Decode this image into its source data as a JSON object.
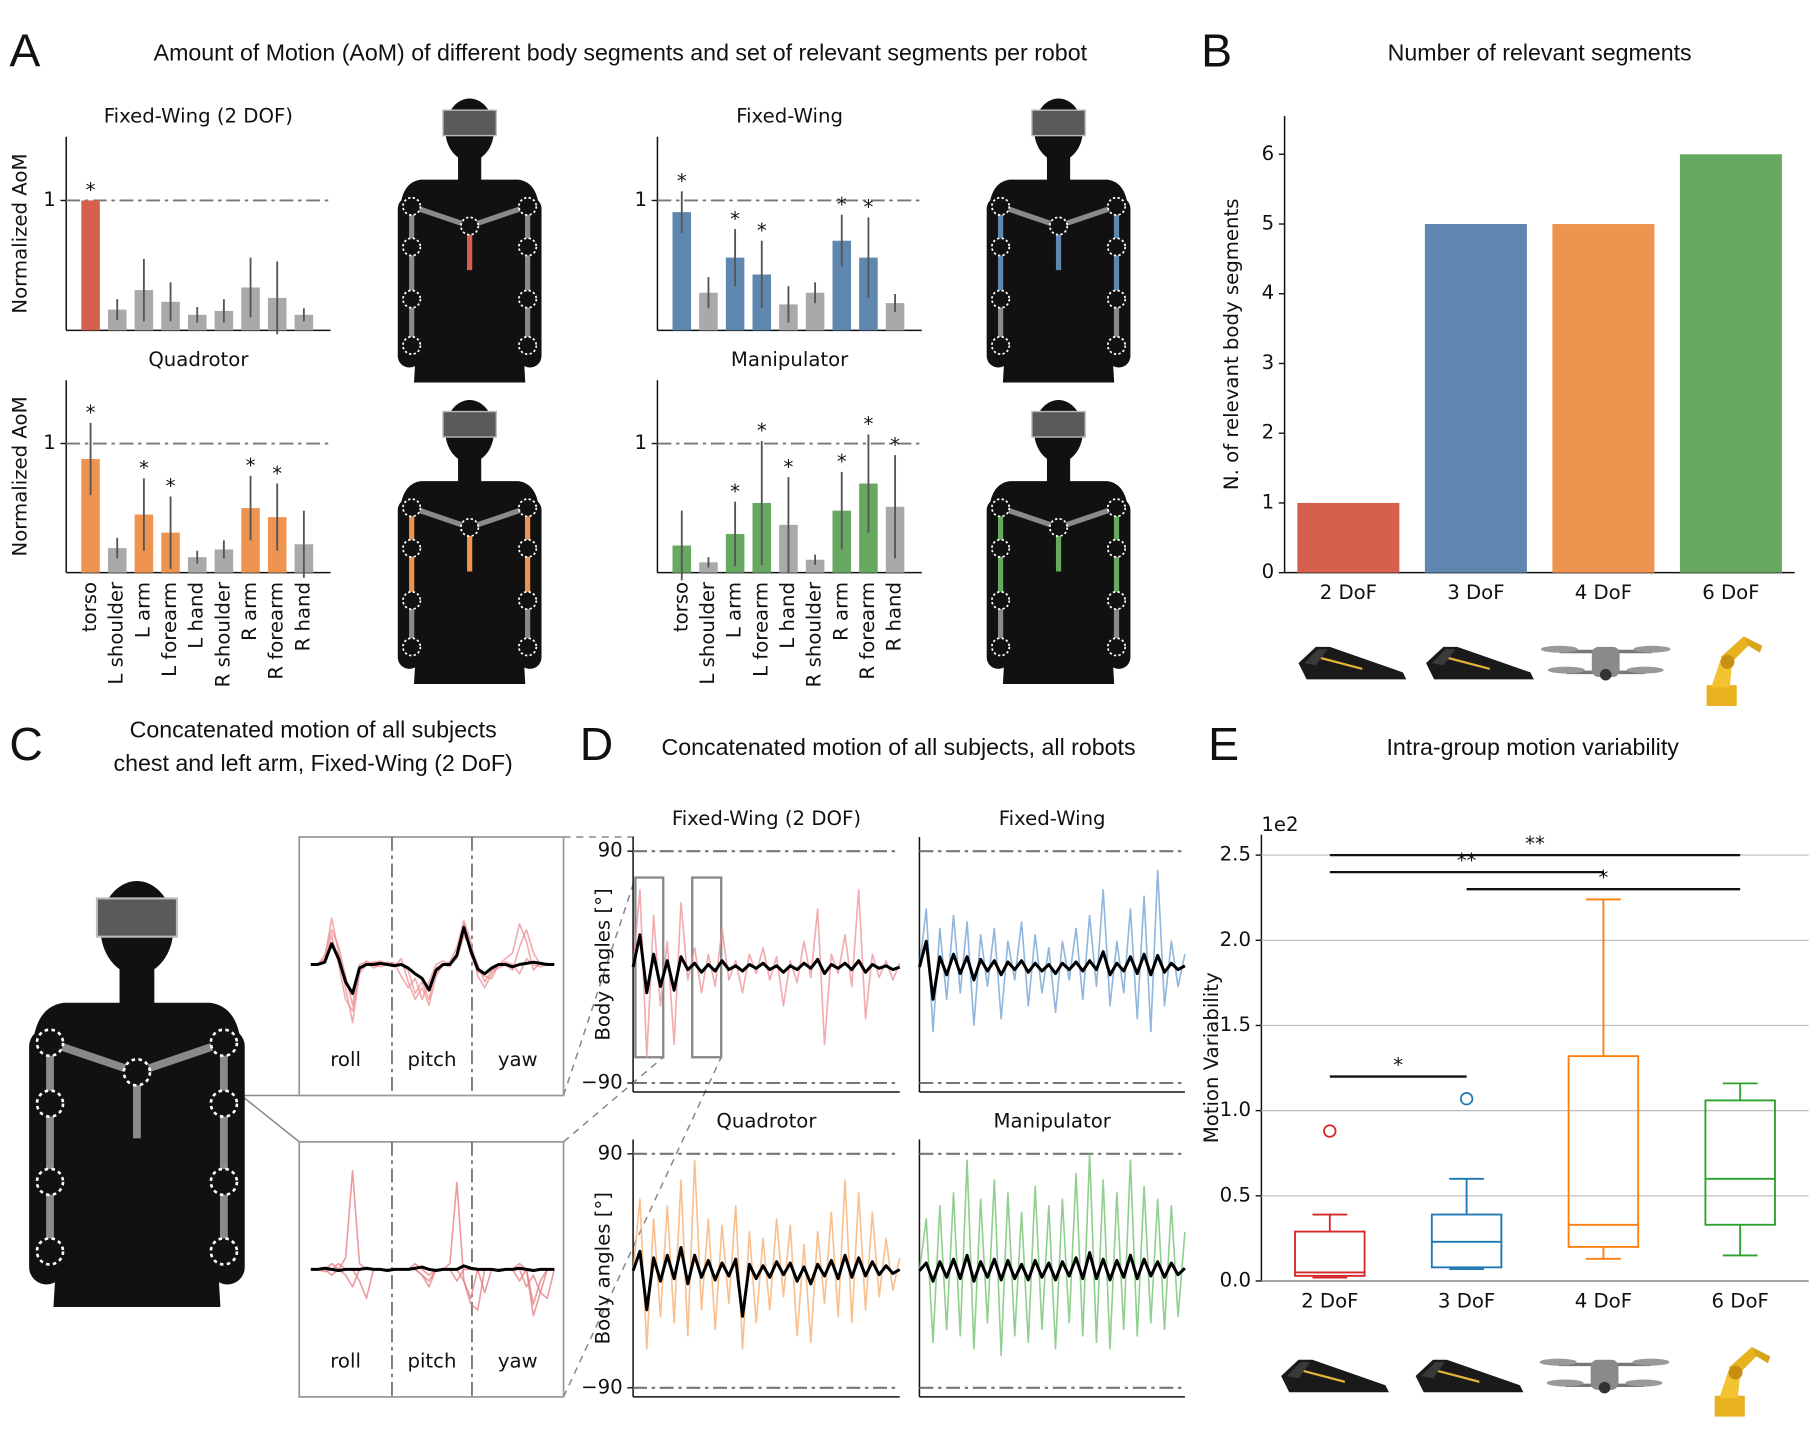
{
  "panels": [
    {
      "label": "A",
      "title": "Amount of Motion (AoM) of different body segments and set of relevant segments per robot"
    },
    {
      "label": "B",
      "title": "Number of relevant segments"
    },
    {
      "label": "C",
      "title": [
        "Concatenated motion of all subjects",
        "chest and left arm, Fixed-Wing (2 DoF)"
      ]
    },
    {
      "label": "D",
      "title": "Concatenated motion of all subjects, all robots"
    },
    {
      "label": "E",
      "title": "Intra-group motion variability"
    }
  ],
  "chart_data": [
    {
      "type": "bar",
      "title": "Fixed-Wing (2 DOF)",
      "ylabel": "Normalized AoM",
      "values": [
        1.0,
        0.16,
        0.31,
        0.22,
        0.12,
        0.15,
        0.33,
        0.25,
        0.12
      ],
      "errors": [
        0.0,
        0.08,
        0.24,
        0.15,
        0.06,
        0.09,
        0.23,
        0.28,
        0.05
      ],
      "markers": [
        "*",
        null,
        null,
        null,
        null,
        null,
        null,
        null,
        null
      ],
      "colors": [
        "#d6604d",
        "#a9a9a9",
        "#a9a9a9",
        "#a9a9a9",
        "#a9a9a9",
        "#a9a9a9",
        "#a9a9a9",
        "#a9a9a9",
        "#a9a9a9"
      ],
      "ylim": [
        0,
        1.49
      ],
      "yticks": [
        1
      ],
      "grid": true
    },
    {
      "type": "bar",
      "title": "Fixed-Wing",
      "values": [
        0.91,
        0.29,
        0.56,
        0.43,
        0.2,
        0.29,
        0.69,
        0.56,
        0.21
      ],
      "errors": [
        0.16,
        0.12,
        0.22,
        0.26,
        0.14,
        0.08,
        0.2,
        0.31,
        0.07
      ],
      "markers": [
        "*",
        null,
        "*",
        "*",
        null,
        null,
        "*",
        "*",
        null
      ],
      "colors": [
        "#5f87b0",
        "#a9a9a9",
        "#5f87b0",
        "#5f87b0",
        "#a9a9a9",
        "#a9a9a9",
        "#5f87b0",
        "#5f87b0",
        "#a9a9a9"
      ],
      "ylim": [
        0,
        1.49
      ],
      "yticks": [
        1
      ],
      "grid": true
    },
    {
      "type": "bar",
      "title": "Quadrotor",
      "ylabel": "Normalized AoM",
      "categories": [
        "torso",
        "L shoulder",
        "L arm",
        "L forearm",
        "L hand",
        "R shoulder",
        "R arm",
        "R forearm",
        "R hand"
      ],
      "values": [
        0.88,
        0.19,
        0.45,
        0.31,
        0.12,
        0.18,
        0.5,
        0.43,
        0.22
      ],
      "errors": [
        0.28,
        0.08,
        0.28,
        0.28,
        0.05,
        0.07,
        0.25,
        0.26,
        0.26
      ],
      "markers": [
        "*",
        null,
        "*",
        "*",
        null,
        null,
        "*",
        "*",
        null
      ],
      "colors": [
        "#ef9450",
        "#a9a9a9",
        "#ef9450",
        "#ef9450",
        "#a9a9a9",
        "#a9a9a9",
        "#ef9450",
        "#ef9450",
        "#a9a9a9"
      ],
      "ylim": [
        0,
        1.49
      ],
      "yticks": [
        1
      ],
      "grid": true
    },
    {
      "type": "bar",
      "title": "Manipulator",
      "categories": [
        "torso",
        "L shoulder",
        "L arm",
        "L forearm",
        "L hand",
        "R shoulder",
        "R arm",
        "R forearm",
        "R hand"
      ],
      "values": [
        0.21,
        0.08,
        0.3,
        0.54,
        0.37,
        0.1,
        0.48,
        0.69,
        0.51
      ],
      "errors": [
        0.27,
        0.04,
        0.25,
        0.48,
        0.37,
        0.04,
        0.3,
        0.38,
        0.4
      ],
      "markers": [
        null,
        null,
        "*",
        "*",
        "*",
        null,
        "*",
        "*",
        "*"
      ],
      "colors": [
        "#68a962",
        "#a9a9a9",
        "#68a962",
        "#68a962",
        "#a9a9a9",
        "#a9a9a9",
        "#68a962",
        "#68a962",
        "#a9a9a9"
      ],
      "ylim": [
        0,
        1.49
      ],
      "yticks": [
        1
      ],
      "grid": true
    },
    {
      "type": "bar",
      "ylabel": "N. of relevant body segments",
      "categories": [
        "2 DoF",
        "3 DoF",
        "4 DoF",
        "6 DoF"
      ],
      "values": [
        1,
        5,
        5,
        6
      ],
      "colors": [
        "#d6604d",
        "#5f87b0",
        "#ef9450",
        "#68a962"
      ],
      "ylim": [
        0,
        6.55
      ],
      "yticks": [
        0,
        1,
        2,
        3,
        4,
        5,
        6
      ]
    },
    {
      "type": "line",
      "sections": [
        "roll",
        "pitch",
        "yaw"
      ],
      "series": [
        {
          "color": "#ec8f93",
          "values": [
            0,
            0,
            5,
            40,
            10,
            -20,
            -50,
            -8,
            0,
            2,
            3,
            0,
            -2,
            5,
            -15,
            -30,
            -20,
            -35,
            -10,
            0,
            2,
            15,
            38,
            20,
            -10,
            -20,
            -8,
            0,
            5,
            10,
            35,
            20,
            -5,
            2,
            0,
            0
          ]
        },
        {
          "color": "#ec8f93",
          "values": [
            0,
            1,
            3,
            25,
            0,
            -30,
            -40,
            -5,
            3,
            0,
            -2,
            0,
            1,
            -10,
            -20,
            -12,
            -30,
            -15,
            0,
            3,
            0,
            5,
            25,
            15,
            0,
            -15,
            -5,
            -3,
            0,
            -5,
            15,
            30,
            10,
            0,
            1,
            0
          ]
        },
        {
          "color": "#ec8f93",
          "values": [
            0,
            0,
            8,
            30,
            15,
            -10,
            -35,
            0,
            2,
            -3,
            0,
            2,
            0,
            0,
            -5,
            -25,
            -15,
            -30,
            -3,
            0,
            -2,
            10,
            35,
            8,
            -6,
            -10,
            -12,
            0,
            2,
            0,
            -8,
            5,
            0,
            -2,
            0,
            0
          ]
        },
        {
          "color": "#000000",
          "values": [
            0,
            0,
            2,
            18,
            5,
            -15,
            -25,
            -3,
            0,
            0,
            1,
            0,
            -1,
            0,
            -3,
            -8,
            -12,
            -22,
            -5,
            0,
            0,
            8,
            32,
            12,
            -4,
            -8,
            -3,
            0,
            0,
            -2,
            0,
            1,
            2,
            1,
            0,
            0
          ]
        }
      ]
    },
    {
      "type": "line",
      "sections": [
        "roll",
        "pitch",
        "yaw"
      ],
      "series": [
        {
          "color": "#e57b80",
          "values": [
            0,
            0,
            0,
            5,
            0,
            -5,
            -15,
            0,
            0,
            0,
            0,
            0,
            0,
            0,
            0,
            5,
            0,
            -5,
            0,
            0,
            0,
            -10,
            0,
            0,
            0,
            -20,
            0,
            0,
            0,
            0,
            5,
            0,
            -30,
            -10,
            0,
            0
          ]
        },
        {
          "color": "#e57b80",
          "values": [
            0,
            0,
            0,
            -5,
            0,
            10,
            85,
            5,
            0,
            0,
            0,
            0,
            0,
            0,
            0,
            0,
            -5,
            -15,
            0,
            0,
            5,
            75,
            -10,
            -25,
            0,
            0,
            0,
            0,
            0,
            0,
            -10,
            0,
            -40,
            -20,
            0,
            0
          ]
        },
        {
          "color": "#e57b80",
          "values": [
            0,
            0,
            -2,
            0,
            5,
            0,
            0,
            -10,
            -25,
            0,
            0,
            0,
            0,
            0,
            0,
            0,
            -5,
            -10,
            0,
            0,
            0,
            0,
            -10,
            -30,
            -35,
            0,
            0,
            0,
            0,
            0,
            0,
            -15,
            -5,
            -20,
            -25,
            0
          ]
        },
        {
          "color": "#000000",
          "values": [
            0,
            0,
            1,
            0,
            -1,
            0,
            0,
            0,
            1,
            0,
            0,
            -1,
            0,
            0,
            0,
            1,
            2,
            0,
            -1,
            0,
            0,
            0,
            3,
            1,
            0,
            0,
            0,
            -1,
            0,
            0,
            1,
            0,
            -1,
            0,
            0,
            0
          ]
        }
      ]
    },
    {
      "type": "line",
      "title": "Fixed-Wing (2 DOF)",
      "ylabel": "Body angles [°]",
      "ylim": [
        -97,
        101
      ],
      "yticks": [
        90,
        {
          "value": -90,
          "label": "−90"
        }
      ],
      "reference_lines": [
        90,
        -90
      ],
      "series": [
        {
          "color": "#ee8f93",
          "values": [
            0,
            60,
            -70,
            40,
            -30,
            20,
            -60,
            50,
            -10,
            15,
            -20,
            10,
            -15,
            30,
            -10,
            5,
            -20,
            10,
            -5,
            15,
            -10,
            8,
            -30,
            5,
            -12,
            20,
            -8,
            45,
            -60,
            10,
            -5,
            25,
            -15,
            60,
            -40,
            10,
            -8,
            5,
            -10,
            3
          ]
        },
        {
          "color": "#000000",
          "values": [
            0,
            25,
            -20,
            10,
            -15,
            5,
            -18,
            8,
            -2,
            3,
            -4,
            2,
            -3,
            5,
            -2,
            1,
            -3,
            2,
            -1,
            3,
            -2,
            1,
            -4,
            1,
            -2,
            3,
            -1,
            6,
            -5,
            2,
            -1,
            3,
            -2,
            5,
            -4,
            2,
            -1,
            1,
            -2,
            0
          ]
        }
      ]
    },
    {
      "type": "line",
      "title": "Fixed-Wing",
      "ylim": [
        -97,
        101
      ],
      "reference_lines": [
        90,
        -90
      ],
      "series": [
        {
          "color": "#6a9fd1",
          "values": [
            0,
            45,
            -50,
            30,
            -25,
            40,
            -20,
            35,
            -45,
            25,
            -15,
            30,
            -40,
            20,
            -10,
            35,
            -30,
            25,
            -20,
            15,
            -35,
            20,
            -10,
            30,
            -25,
            40,
            -15,
            60,
            -30,
            20,
            -20,
            45,
            -40,
            55,
            -50,
            75,
            -30,
            20,
            -15,
            10
          ]
        },
        {
          "color": "#000000",
          "values": [
            0,
            20,
            -25,
            8,
            -6,
            10,
            -5,
            8,
            -10,
            6,
            -3,
            5,
            -6,
            4,
            -2,
            5,
            -4,
            3,
            -3,
            2,
            -5,
            3,
            -2,
            4,
            -3,
            5,
            -2,
            12,
            -6,
            3,
            -3,
            8,
            -5,
            10,
            -6,
            9,
            -4,
            3,
            -2,
            1
          ]
        }
      ]
    },
    {
      "type": "line",
      "title": "Quadrotor",
      "ylabel": "Body angles [°]",
      "ylim": [
        -97,
        101
      ],
      "yticks": [
        90,
        {
          "value": -90,
          "label": "−90"
        }
      ],
      "reference_lines": [
        90,
        -90
      ],
      "series": [
        {
          "color": "#f5a96a",
          "values": [
            0,
            55,
            -60,
            40,
            -35,
            50,
            -40,
            70,
            -50,
            85,
            -30,
            40,
            -45,
            35,
            -25,
            50,
            -60,
            30,
            -40,
            25,
            -30,
            40,
            -20,
            35,
            -50,
            20,
            -55,
            30,
            -25,
            45,
            -35,
            70,
            -40,
            60,
            -30,
            45,
            -20,
            25,
            -15,
            10
          ]
        },
        {
          "color": "#000000",
          "values": [
            0,
            15,
            -30,
            10,
            -8,
            12,
            -6,
            18,
            -10,
            12,
            -5,
            8,
            -7,
            6,
            -4,
            9,
            -35,
            5,
            -6,
            4,
            -5,
            7,
            -3,
            6,
            -8,
            3,
            -10,
            5,
            -4,
            8,
            -6,
            12,
            -5,
            10,
            -4,
            7,
            -3,
            4,
            -2,
            1
          ]
        }
      ]
    },
    {
      "type": "line",
      "title": "Manipulator",
      "ylim": [
        -97,
        101
      ],
      "reference_lines": [
        90,
        -90
      ],
      "series": [
        {
          "color": "#6cbf6a",
          "values": [
            0,
            40,
            -55,
            50,
            -45,
            60,
            -50,
            85,
            -60,
            55,
            -40,
            70,
            -65,
            60,
            -50,
            45,
            -55,
            65,
            -45,
            50,
            -60,
            55,
            -40,
            75,
            -50,
            90,
            -55,
            70,
            -60,
            60,
            -45,
            85,
            -50,
            65,
            -40,
            55,
            -45,
            50,
            -35,
            30
          ]
        },
        {
          "color": "#000000",
          "values": [
            0,
            6,
            -8,
            7,
            -5,
            9,
            -6,
            12,
            -8,
            7,
            -5,
            9,
            -7,
            8,
            -6,
            5,
            -7,
            8,
            -5,
            6,
            -7,
            7,
            -4,
            10,
            -6,
            14,
            -6,
            9,
            -7,
            8,
            -5,
            12,
            -6,
            9,
            -4,
            7,
            -5,
            6,
            -3,
            2
          ]
        }
      ]
    },
    {
      "type": "box",
      "ylabel": "Motion Variability",
      "scale_label": "1e2",
      "categories": [
        "2 DoF",
        "3 DoF",
        "4 DoF",
        "6 DoF"
      ],
      "boxes": [
        {
          "color": "#d62728",
          "whislo": 0.02,
          "q1": 0.03,
          "median": 0.05,
          "q3": 0.29,
          "whishi": 0.39,
          "fliers": [
            0.88
          ]
        },
        {
          "color": "#1f77b4",
          "whislo": 0.07,
          "q1": 0.08,
          "median": 0.23,
          "q3": 0.39,
          "whishi": 0.6,
          "fliers": [
            1.07
          ]
        },
        {
          "color": "#ff7f0e",
          "whislo": 0.13,
          "q1": 0.2,
          "median": 0.33,
          "q3": 1.32,
          "whishi": 2.24,
          "fliers": []
        },
        {
          "color": "#2ca02c",
          "whislo": 0.15,
          "q1": 0.33,
          "median": 0.6,
          "q3": 1.06,
          "whishi": 1.16,
          "fliers": []
        }
      ],
      "significance": [
        {
          "groups": [
            "2 DoF",
            "3 DoF"
          ],
          "y": 1.2,
          "label": "*"
        },
        {
          "groups": [
            "2 DoF",
            "4 DoF"
          ],
          "y": 2.4,
          "label": "**"
        },
        {
          "groups": [
            "2 DoF",
            "6 DoF"
          ],
          "y": 2.5,
          "label": "**"
        },
        {
          "groups": [
            "3 DoF",
            "6 DoF"
          ],
          "y": 2.3,
          "label": "*"
        }
      ],
      "ylim": [
        0,
        2.62
      ],
      "yticks": [
        {
          "value": 0,
          "label": "0.0"
        },
        0.5,
        {
          "value": 1,
          "label": "1.0"
        },
        1.5,
        {
          "value": 2,
          "label": "2.0"
        },
        2.5
      ],
      "grid": true
    }
  ]
}
